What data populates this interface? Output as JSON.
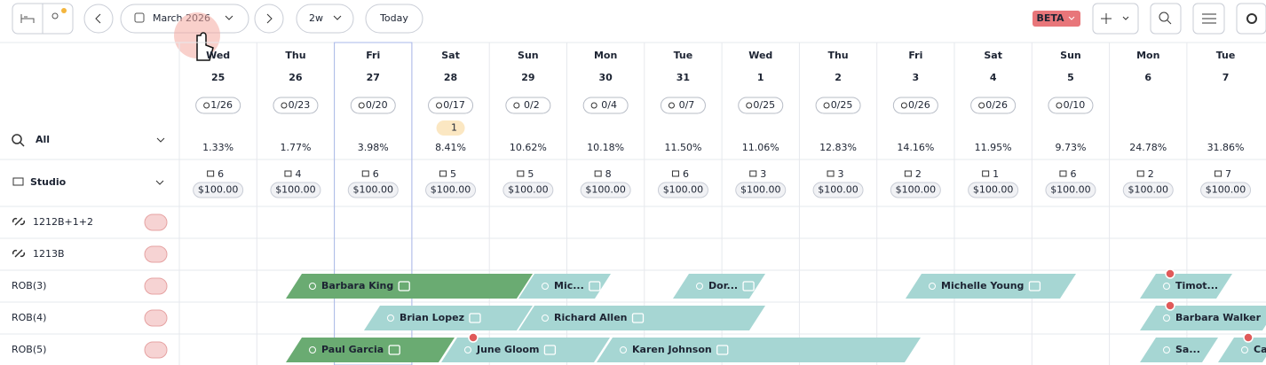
{
  "toolbar": {
    "month": "March 2026",
    "range": "2w",
    "today": "Today",
    "beta": "BETA"
  },
  "sidebar": {
    "filter": "All",
    "group": "Studio"
  },
  "days": [
    {
      "dow": "Wed",
      "date": "25",
      "occupancy": "1/26",
      "percent": "1.33%",
      "units": "6",
      "price": "$100.00"
    },
    {
      "dow": "Thu",
      "date": "26",
      "occupancy": "0/23",
      "percent": "1.77%",
      "units": "4",
      "price": "$100.00"
    },
    {
      "dow": "Fri",
      "date": "27",
      "occupancy": "0/20",
      "percent": "3.98%",
      "units": "6",
      "price": "$100.00"
    },
    {
      "dow": "Sat",
      "date": "28",
      "occupancy": "0/17",
      "badge": "1",
      "percent": "8.41%",
      "units": "5",
      "price": "$100.00"
    },
    {
      "dow": "Sun",
      "date": "29",
      "occupancy": "0/2",
      "percent": "10.62%",
      "units": "5",
      "price": "$100.00"
    },
    {
      "dow": "Mon",
      "date": "30",
      "occupancy": "0/4",
      "percent": "10.18%",
      "units": "8",
      "price": "$100.00"
    },
    {
      "dow": "Tue",
      "date": "31",
      "occupancy": "0/7",
      "percent": "11.50%",
      "units": "6",
      "price": "$100.00"
    },
    {
      "dow": "Wed",
      "date": "1",
      "occupancy": "0/25",
      "percent": "11.06%",
      "units": "3",
      "price": "$100.00"
    },
    {
      "dow": "Thu",
      "date": "2",
      "occupancy": "0/25",
      "percent": "12.83%",
      "units": "3",
      "price": "$100.00"
    },
    {
      "dow": "Fri",
      "date": "3",
      "occupancy": "0/26",
      "percent": "14.16%",
      "units": "2",
      "price": "$100.00"
    },
    {
      "dow": "Sat",
      "date": "4",
      "occupancy": "0/26",
      "percent": "11.95%",
      "units": "1",
      "price": "$100.00"
    },
    {
      "dow": "Sun",
      "date": "5",
      "occupancy": "0/10",
      "percent": "9.73%",
      "units": "6",
      "price": "$100.00"
    },
    {
      "dow": "Mon",
      "date": "6",
      "percent": "24.78%",
      "units": "2",
      "price": "$100.00"
    },
    {
      "dow": "Tue",
      "date": "7",
      "percent": "31.86%",
      "units": "7",
      "price": "$100.00"
    }
  ],
  "units": [
    {
      "name": "1212B+1+2"
    },
    {
      "name": "1213B"
    },
    {
      "name": "ROB(3)",
      "bookings": [
        {
          "name": "Barbara King"
        },
        {
          "name": "Mic..."
        },
        {
          "name": "Dor..."
        },
        {
          "name": "Michelle Young"
        },
        {
          "name": "Timot..."
        }
      ]
    },
    {
      "name": "ROB(4)",
      "bookings": [
        {
          "name": "Brian Lopez"
        },
        {
          "name": "Richard Allen"
        },
        {
          "name": "Barbara Walker"
        }
      ]
    },
    {
      "name": "ROB(5)",
      "bookings": [
        {
          "name": "Paul Garcia"
        },
        {
          "name": "June Gloom"
        },
        {
          "name": "Karen Johnson"
        },
        {
          "name": "Sa..."
        },
        {
          "name": "Carol"
        }
      ]
    }
  ]
}
